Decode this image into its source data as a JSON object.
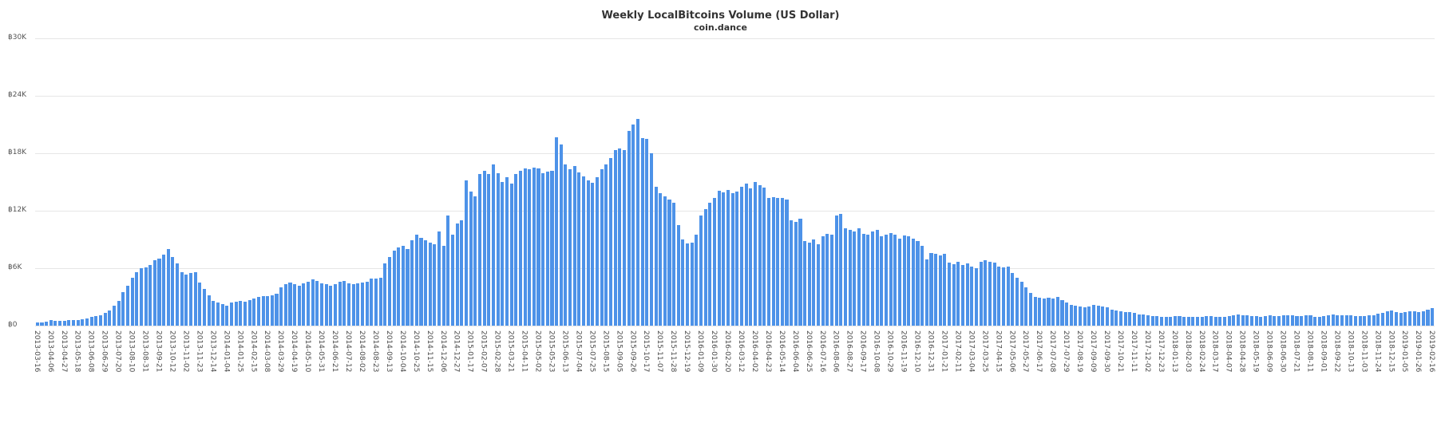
{
  "chart_data": {
    "type": "bar",
    "title": "Weekly LocalBitcoins Volume (US Dollar)",
    "subtitle": "coin.dance",
    "bar_color": "#4d92e8",
    "grid": true,
    "legend": "none",
    "ylim": [
      0,
      30000
    ],
    "y_ticks": [
      {
        "value": 0,
        "label": "฿0"
      },
      {
        "value": 6000,
        "label": "฿6K"
      },
      {
        "value": 12000,
        "label": "฿12K"
      },
      {
        "value": 18000,
        "label": "฿18K"
      },
      {
        "value": 24000,
        "label": "฿24K"
      },
      {
        "value": 30000,
        "label": "฿30K"
      }
    ],
    "x_start": "2013-03-16",
    "x_interval": "weekly",
    "x_tick_every": 3,
    "x_tick_labels": [
      "2013-03-16",
      "2013-04-06",
      "2013-04-27",
      "2013-05-18",
      "2013-06-08",
      "2013-06-29",
      "2013-07-20",
      "2013-08-10",
      "2013-08-31",
      "2013-09-21",
      "2013-10-12",
      "2013-11-02",
      "2013-11-23",
      "2013-12-14",
      "2014-01-04",
      "2014-01-25",
      "2014-02-15",
      "2014-03-08",
      "2014-03-29",
      "2014-04-19",
      "2014-05-10",
      "2014-05-31",
      "2014-06-21",
      "2014-07-12",
      "2014-08-02",
      "2014-08-23",
      "2014-09-13",
      "2014-10-04",
      "2014-10-25",
      "2014-11-15",
      "2014-12-06",
      "2014-12-27",
      "2015-01-17",
      "2015-02-07",
      "2015-02-28",
      "2015-03-21",
      "2015-04-11",
      "2015-05-02",
      "2015-05-23",
      "2015-06-13",
      "2015-07-04",
      "2015-07-25",
      "2015-08-15",
      "2015-09-05",
      "2015-09-26",
      "2015-10-17",
      "2015-11-07",
      "2015-11-28",
      "2015-12-19",
      "2016-01-09",
      "2016-01-30",
      "2016-02-20",
      "2016-03-12",
      "2016-04-02",
      "2016-04-23",
      "2016-05-14",
      "2016-06-04",
      "2016-06-25",
      "2016-07-16",
      "2016-08-06",
      "2016-08-27",
      "2016-09-17",
      "2016-10-08",
      "2016-10-29",
      "2016-11-19",
      "2016-12-10",
      "2016-12-31",
      "2017-01-21",
      "2017-02-11",
      "2017-03-04",
      "2017-03-25",
      "2017-04-15",
      "2017-05-06",
      "2017-05-27",
      "2017-06-17",
      "2017-07-08",
      "2017-07-29",
      "2017-08-19",
      "2017-09-09",
      "2017-09-30",
      "2017-10-21",
      "2017-11-11",
      "2017-12-02",
      "2017-12-23",
      "2018-01-13",
      "2018-02-03",
      "2018-02-24",
      "2018-03-17",
      "2018-04-07",
      "2018-04-28",
      "2018-05-19",
      "2018-06-09",
      "2018-06-30",
      "2018-07-21",
      "2018-08-11",
      "2018-09-01",
      "2018-09-22",
      "2018-10-13",
      "2018-11-03",
      "2018-11-24",
      "2018-12-15",
      "2019-01-05",
      "2019-01-26",
      "2019-02-16"
    ],
    "values": [
      300,
      350,
      420,
      600,
      520,
      470,
      500,
      560,
      620,
      600,
      680,
      780,
      900,
      980,
      1080,
      1300,
      1600,
      2050,
      2600,
      3500,
      4200,
      5000,
      5600,
      6000,
      6100,
      6300,
      6800,
      7000,
      7400,
      8000,
      7200,
      6500,
      5600,
      5300,
      5500,
      5600,
      4500,
      3800,
      3200,
      2600,
      2400,
      2250,
      2100,
      2400,
      2500,
      2600,
      2500,
      2700,
      2800,
      3000,
      3100,
      3100,
      3200,
      3300,
      4000,
      4300,
      4500,
      4300,
      4200,
      4400,
      4600,
      4800,
      4700,
      4400,
      4300,
      4200,
      4300,
      4600,
      4700,
      4400,
      4300,
      4400,
      4500,
      4600,
      4900,
      4900,
      5000,
      6500,
      7200,
      7800,
      8200,
      8300,
      8000,
      8900,
      9500,
      9200,
      8900,
      8700,
      8500,
      9800,
      8300,
      11500,
      9500,
      10700,
      11000,
      15200,
      14000,
      13500,
      15800,
      16200,
      15800,
      16800,
      15900,
      15000,
      15500,
      14800,
      15800,
      16200,
      16400,
      16300,
      16500,
      16400,
      15900,
      16100,
      16200,
      19700,
      18900,
      16800,
      16300,
      16700,
      16000,
      15600,
      15200,
      14900,
      15500,
      16300,
      16800,
      17500,
      18300,
      18500,
      18300,
      20300,
      21000,
      21600,
      19600,
      19500,
      18000,
      14500,
      13800,
      13500,
      13200,
      12800,
      10500,
      9000,
      8600,
      8700,
      9500,
      11500,
      12200,
      12800,
      13300,
      14100,
      13900,
      14200,
      13800,
      14000,
      14500,
      14800,
      14300,
      15000,
      14700,
      14400,
      13300,
      13400,
      13300,
      13300,
      13200,
      11000,
      10800,
      11200,
      8800,
      8700,
      9000,
      8500,
      9300,
      9600,
      9500,
      11500,
      11700,
      10200,
      10000,
      9800,
      10200,
      9600,
      9500,
      9800,
      10000,
      9300,
      9500,
      9700,
      9500,
      9100,
      9400,
      9300,
      9100,
      8800,
      8300,
      6900,
      7600,
      7500,
      7300,
      7500,
      6600,
      6400,
      6700,
      6300,
      6500,
      6200,
      6000,
      6700,
      6800,
      6700,
      6600,
      6200,
      6100,
      6200,
      5500,
      5000,
      4600,
      4000,
      3400,
      3000,
      2900,
      2800,
      2900,
      2800,
      3000,
      2700,
      2400,
      2200,
      2100,
      2000,
      1900,
      2000,
      2200,
      2100,
      2000,
      1900,
      1700,
      1600,
      1500,
      1400,
      1400,
      1300,
      1200,
      1200,
      1100,
      1000,
      1000,
      900,
      900,
      950,
      1000,
      1000,
      950,
      900,
      950,
      900,
      950,
      1000,
      1000,
      950,
      900,
      950,
      1000,
      1100,
      1150,
      1100,
      1050,
      1000,
      1000,
      950,
      1000,
      1050,
      1000,
      1000,
      1100,
      1100,
      1050,
      1000,
      1000,
      1050,
      1100,
      950,
      900,
      1000,
      1100,
      1150,
      1100,
      1050,
      1100,
      1050,
      1000,
      1000,
      1000,
      1050,
      1100,
      1250,
      1300,
      1500,
      1600,
      1400,
      1300,
      1400,
      1500,
      1500,
      1450,
      1500,
      1700,
      1800
    ]
  }
}
